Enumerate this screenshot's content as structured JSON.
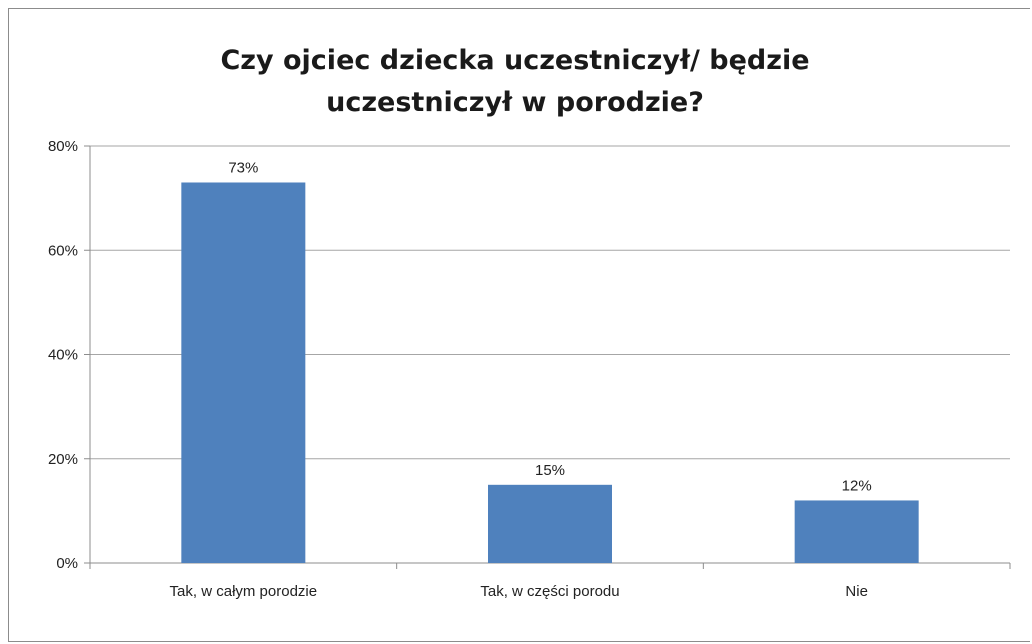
{
  "chart_data": {
    "type": "bar",
    "title": "Czy ojciec dziecka uczestniczył/ będzie uczestniczył w porodzie?",
    "categories": [
      "Tak, w całym porodzie",
      "Tak, w części porodu",
      "Nie"
    ],
    "values": [
      73,
      15,
      12
    ],
    "data_labels": [
      "73%",
      "15%",
      "12%"
    ],
    "ylim": [
      0,
      80
    ],
    "yticks": [
      0,
      20,
      40,
      60,
      80
    ],
    "ytick_labels": [
      "0%",
      "20%",
      "40%",
      "60%",
      "80%"
    ],
    "grid": true,
    "legend": "none",
    "bar_color": "#4f81bd",
    "grid_color": "#a6a6a6"
  }
}
